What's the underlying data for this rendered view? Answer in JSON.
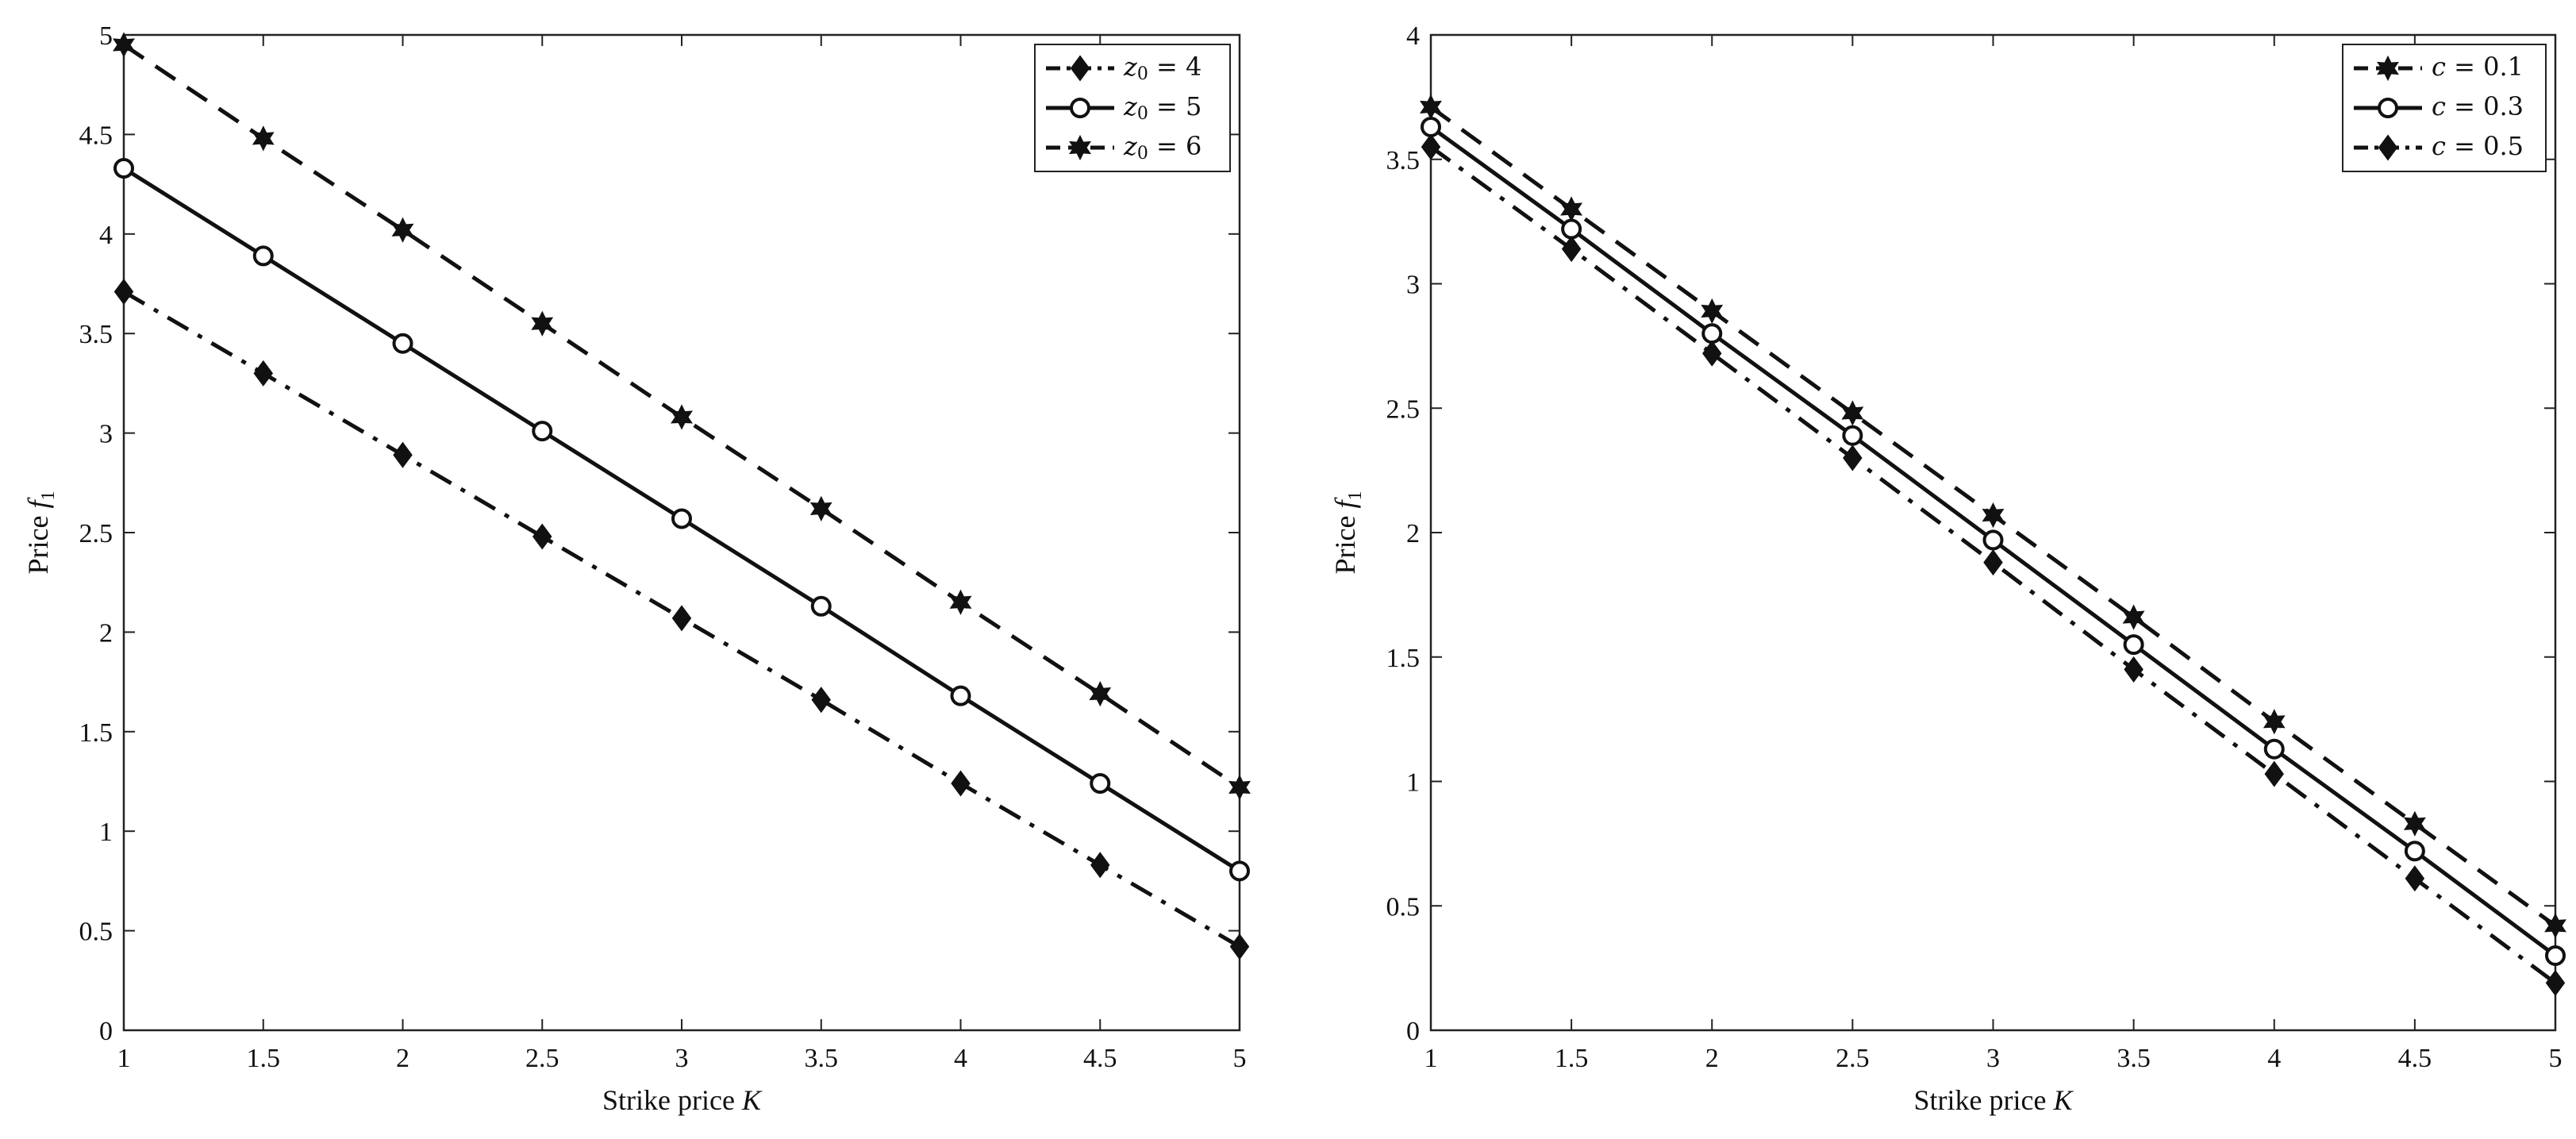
{
  "chart_data": [
    {
      "type": "line",
      "xlabel": "Strike price K",
      "ylabel": "Price f1",
      "xlim": [
        1,
        5
      ],
      "ylim": [
        0,
        5
      ],
      "x": [
        1,
        1.5,
        2,
        2.5,
        3,
        3.5,
        4,
        4.5,
        5
      ],
      "xticks": [
        "1",
        "1.5",
        "2",
        "2.5",
        "3",
        "3.5",
        "4",
        "4.5",
        "5"
      ],
      "yticks": [
        "0",
        "0.5",
        "1",
        "1.5",
        "2",
        "2.5",
        "3",
        "3.5",
        "4",
        "4.5",
        "5"
      ],
      "grid": false,
      "legend_position": "top-right",
      "series": [
        {
          "name": "z0 = 4",
          "line_style": "dash-dot",
          "marker": "diamond",
          "values": [
            3.71,
            3.3,
            2.89,
            2.48,
            2.07,
            1.66,
            1.24,
            0.83,
            0.42
          ]
        },
        {
          "name": "z0 = 5",
          "line_style": "solid",
          "marker": "circle",
          "values": [
            4.33,
            3.89,
            3.45,
            3.01,
            2.57,
            2.13,
            1.68,
            1.24,
            0.8
          ]
        },
        {
          "name": "z0 = 6",
          "line_style": "dash",
          "marker": "star",
          "values": [
            4.95,
            4.48,
            4.02,
            3.55,
            3.08,
            2.62,
            2.15,
            1.69,
            1.22
          ]
        }
      ],
      "legend_order": [
        0,
        1,
        2
      ]
    },
    {
      "type": "line",
      "xlabel": "Strike price K",
      "ylabel": "Price f1",
      "xlim": [
        1,
        5
      ],
      "ylim": [
        0,
        4
      ],
      "x": [
        1,
        1.5,
        2,
        2.5,
        3,
        3.5,
        4,
        4.5,
        5
      ],
      "xticks": [
        "1",
        "1.5",
        "2",
        "2.5",
        "3",
        "3.5",
        "4",
        "4.5",
        "5"
      ],
      "yticks": [
        "0",
        "0.5",
        "1",
        "1.5",
        "2",
        "2.5",
        "3",
        "3.5",
        "4"
      ],
      "grid": false,
      "legend_position": "top-right",
      "series": [
        {
          "name": "c = 0.1",
          "line_style": "dash",
          "marker": "star",
          "values": [
            3.71,
            3.3,
            2.89,
            2.48,
            2.07,
            1.66,
            1.24,
            0.83,
            0.42
          ]
        },
        {
          "name": "c = 0.3",
          "line_style": "solid",
          "marker": "circle",
          "values": [
            3.63,
            3.22,
            2.8,
            2.39,
            1.97,
            1.55,
            1.13,
            0.72,
            0.3
          ]
        },
        {
          "name": "c = 0.5",
          "line_style": "dash-dot",
          "marker": "diamond",
          "values": [
            3.55,
            3.14,
            2.72,
            2.3,
            1.88,
            1.45,
            1.03,
            0.61,
            0.19
          ]
        }
      ],
      "legend_order": [
        0,
        1,
        2
      ]
    }
  ],
  "colors": {
    "line": "#111111",
    "axis": "#222222",
    "background": "#ffffff"
  }
}
